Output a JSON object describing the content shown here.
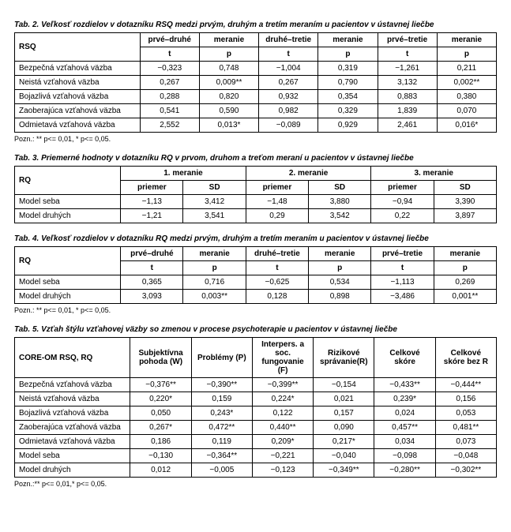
{
  "tab2": {
    "caption": "Tab. 2. Veľkosť rozdielov v dotazníku RSQ medzi prvým, druhým a tretím meraním u pacientov v ústavnej liečbe",
    "rowhead": "RSQ",
    "group_headers": [
      "prvé–druhé",
      "meranie",
      "druhé–tretie",
      "meranie",
      "prvé–tretie",
      "meranie"
    ],
    "sub_headers": [
      "t",
      "p",
      "t",
      "p",
      "t",
      "p"
    ],
    "rows": [
      {
        "label": "Bezpečná vzťahová väzba",
        "v": [
          "−0,323",
          "0,748",
          "−1,004",
          "0,319",
          "−1,261",
          "0,211"
        ]
      },
      {
        "label": "Neistá vzťahová väzba",
        "v": [
          "0,267",
          "0,009**",
          "0,267",
          "0,790",
          "3,132",
          "0,002**"
        ]
      },
      {
        "label": "Bojazlivá vzťahová väzba",
        "v": [
          "0,288",
          "0,820",
          "0,932",
          "0,354",
          "0,883",
          "0,380"
        ]
      },
      {
        "label": "Zaoberajúca vzťahová väzba",
        "v": [
          "0,541",
          "0,590",
          "0,982",
          "0,329",
          "1,839",
          "0,070"
        ]
      },
      {
        "label": "Odmietavá vzťahová väzba",
        "v": [
          "2,552",
          "0,013*",
          "−0,089",
          "0,929",
          "2,461",
          "0,016*"
        ]
      }
    ],
    "footnote": "Pozn.: ** p<= 0,01, * p<= 0,05."
  },
  "tab3": {
    "caption": "Tab. 3. Priemerné hodnoty v dotazníku RQ v prvom, druhom a treťom meraní u pacientov v ústavnej liečbe",
    "rowhead": "RQ",
    "group_headers": [
      "1. meranie",
      "2. meranie",
      "3. meranie"
    ],
    "sub_headers": [
      "priemer",
      "SD",
      "priemer",
      "SD",
      "priemer",
      "SD"
    ],
    "rows": [
      {
        "label": "Model seba",
        "v": [
          "−1,13",
          "3,412",
          "−1,48",
          "3,880",
          "−0,94",
          "3,390"
        ]
      },
      {
        "label": "Model druhých",
        "v": [
          "−1,21",
          "3,541",
          "0,29",
          "3,542",
          "0,22",
          "3,897"
        ]
      }
    ]
  },
  "tab4": {
    "caption": "Tab. 4. Veľkosť rozdielov v dotazníku RQ medzi prvým, druhým a tretím meraním u pacientov v ústavnej liečbe",
    "rowhead": "RQ",
    "group_headers": [
      "prvé–druhé",
      "meranie",
      "druhé–tretie",
      "meranie",
      "prvé–tretie",
      "meranie"
    ],
    "sub_headers": [
      "t",
      "p",
      "t",
      "p",
      "t",
      "p"
    ],
    "rows": [
      {
        "label": "Model seba",
        "v": [
          "0,365",
          "0,716",
          "−0,625",
          "0,534",
          "−1,113",
          "0,269"
        ]
      },
      {
        "label": "Model druhých",
        "v": [
          "3,093",
          "0,003**",
          "0,128",
          "0,898",
          "−3,486",
          "0,001**"
        ]
      }
    ],
    "footnote": "Pozn.: ** p<= 0,01, * p<= 0,05."
  },
  "tab5": {
    "caption": "Tab. 5. Vzťah štýlu vzťahovej väzby so zmenou v procese psychoterapie u pacientov v ústavnej liečbe",
    "rowhead": "CORE-OM RSQ, RQ",
    "col_headers": [
      "Subjektívna pohoda (W)",
      "Problémy (P)",
      "Interpers. a soc. fungovanie (F)",
      "Rizikové správanie(R)",
      "Celkové skóre",
      "Celkové skóre bez R"
    ],
    "rows": [
      {
        "label": "Bezpečná vzťahová väzba",
        "v": [
          "−0,376**",
          "−0,390**",
          "−0,399**",
          "−0,154",
          "−0,433**",
          "−0,444**"
        ]
      },
      {
        "label": "Neistá vzťahová väzba",
        "v": [
          "0,220*",
          "0,159",
          "0,224*",
          "0,021",
          "0,239*",
          "0,156"
        ]
      },
      {
        "label": "Bojazlivá vzťahová väzba",
        "v": [
          "0,050",
          "0,243*",
          "0,122",
          "0,157",
          "0,024",
          "0,053"
        ]
      },
      {
        "label": "Zaoberajúca vzťahová väzba",
        "v": [
          "0,267*",
          "0,472**",
          "0,440**",
          "0,090",
          "0,457**",
          "0,481**"
        ]
      },
      {
        "label": "Odmietavá vzťahová väzba",
        "v": [
          "0,186",
          "0,119",
          "0,209*",
          "0,217*",
          "0,034",
          "0,073"
        ]
      },
      {
        "label": "Model seba",
        "v": [
          "−0,130",
          "−0,364**",
          "−0,221",
          "−0,040",
          "−0,098",
          "−0,048"
        ]
      },
      {
        "label": "Model druhých",
        "v": [
          "0,012",
          "−0,005",
          "−0,123",
          "−0,349**",
          "−0,280**",
          "−0,302**"
        ]
      }
    ],
    "footnote": "Pozn.:** p<= 0,01,* p<= 0,05."
  }
}
